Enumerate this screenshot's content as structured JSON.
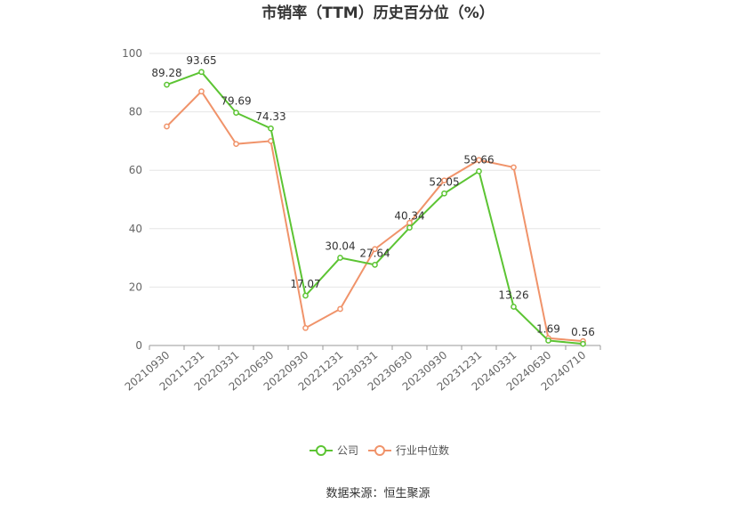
{
  "chart_data": {
    "type": "line",
    "title": "市销率（TTM）历史百分位（%）",
    "x": [
      "20210930",
      "20211231",
      "20220331",
      "20220630",
      "20220930",
      "20221231",
      "20230331",
      "20230630",
      "20230930",
      "20231231",
      "20240331",
      "20240630",
      "20240710"
    ],
    "ylim": [
      0,
      100
    ],
    "yticks": [
      0,
      20,
      40,
      60,
      80,
      100
    ],
    "grid": true,
    "legend_position": "bottom-center",
    "series": [
      {
        "name": "公司",
        "color": "#5cc433",
        "values": [
          89.28,
          93.65,
          79.69,
          74.33,
          17.07,
          30.04,
          27.64,
          40.34,
          52.05,
          59.66,
          13.26,
          1.69,
          0.56
        ],
        "labels": [
          "89.28",
          "93.65",
          "79.69",
          "74.33",
          "17.07",
          "30.04",
          "27.64",
          "40.34",
          "52.05",
          "59.66",
          "13.26",
          "1.69",
          "0.56"
        ]
      },
      {
        "name": "行业中位数",
        "color": "#f0936a",
        "values": [
          75,
          87,
          69,
          70,
          6,
          12.5,
          33,
          42,
          56.5,
          63.5,
          61,
          2.5,
          1.5
        ]
      }
    ],
    "source": "数据来源：恒生聚源"
  }
}
